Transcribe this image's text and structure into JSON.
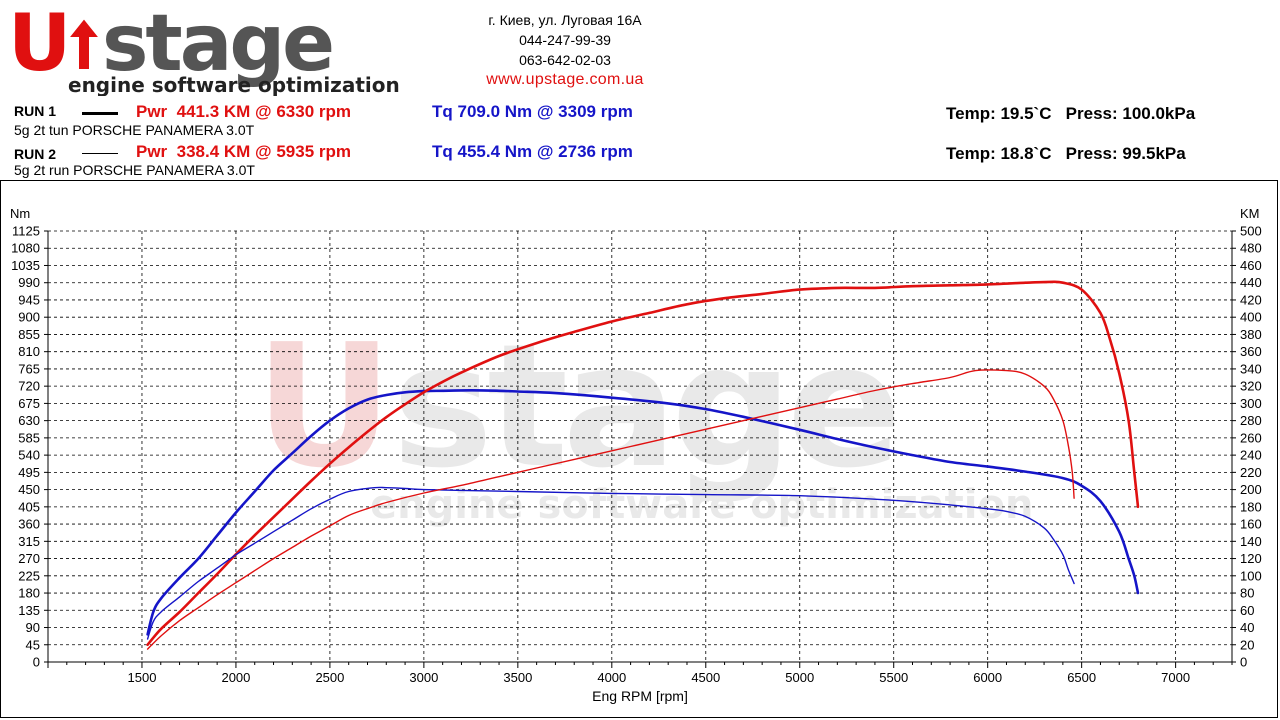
{
  "header": {
    "logo_text": "Upstage",
    "logo_tagline": "engine software optimization",
    "address": "г. Киев, ул. Луговая 16А",
    "phone1": "044-247-99-39",
    "phone2": "063-642-02-03",
    "website": "www.upstage.com.ua"
  },
  "runs": [
    {
      "label": "RUN 1",
      "description": "5g 2t tun PORSCHE PANAMERA 3.0T",
      "power": "Pwr  441.3 KM @ 6330 rpm",
      "torque": "Tq 709.0 Nm @ 3309 rpm",
      "temp": "Temp: 19.5`C",
      "press": "Press: 100.0kPa"
    },
    {
      "label": "RUN 2",
      "description": "5g 2t run PORSCHE PANAMERA 3.0T",
      "power": "Pwr  338.4 KM @ 5935 rpm",
      "torque": "Tq 455.4 Nm @ 2736 rpm",
      "temp": "Temp: 18.8`C",
      "press": "Press: 99.5kPa"
    }
  ],
  "colors": {
    "power": "#e01010",
    "torque": "#1515c8",
    "watermark": "#f2c8c8"
  },
  "chart_data": {
    "type": "line",
    "xlabel": "Eng RPM [rpm]",
    "ylabel_left": "Nm",
    "ylabel_right": "KM",
    "xlim": [
      1000,
      7300
    ],
    "ylim_left": [
      0,
      1125
    ],
    "ylim_right": [
      0,
      500
    ],
    "grid": true,
    "x_ticks": [
      1500,
      2000,
      2500,
      3000,
      3500,
      4000,
      4500,
      5000,
      5500,
      6000,
      6500,
      7000
    ],
    "y_left_ticks": [
      0,
      45,
      90,
      135,
      180,
      225,
      270,
      315,
      360,
      405,
      450,
      495,
      540,
      585,
      630,
      675,
      720,
      765,
      810,
      855,
      900,
      945,
      990,
      1035,
      1080,
      1125
    ],
    "y_right_ticks": [
      0,
      20,
      40,
      60,
      80,
      100,
      120,
      140,
      160,
      180,
      200,
      220,
      240,
      260,
      280,
      300,
      320,
      340,
      360,
      380,
      400,
      420,
      440,
      460,
      480,
      500
    ],
    "series": [
      {
        "run": 1,
        "quantity": "torque",
        "axis": "left",
        "color": "#1515c8",
        "width": 2.6,
        "x": [
          1530,
          1560,
          1600,
          1700,
          1800,
          1900,
          2000,
          2100,
          2200,
          2300,
          2400,
          2500,
          2600,
          2700,
          2800,
          2900,
          3000,
          3100,
          3200,
          3309,
          3400,
          3500,
          3700,
          4000,
          4300,
          4500,
          4700,
          5000,
          5200,
          5400,
          5600,
          5800,
          6000,
          6200,
          6400,
          6500,
          6600,
          6700,
          6750,
          6780,
          6800
        ],
        "y": [
          72,
          130,
          165,
          220,
          270,
          330,
          390,
          445,
          500,
          545,
          590,
          630,
          662,
          685,
          697,
          704,
          707,
          708,
          709,
          709,
          708,
          706,
          702,
          690,
          675,
          660,
          640,
          606,
          582,
          560,
          540,
          522,
          510,
          497,
          480,
          460,
          420,
          340,
          270,
          225,
          180
        ]
      },
      {
        "run": 1,
        "quantity": "power",
        "axis": "right",
        "color": "#e01010",
        "width": 2.6,
        "x": [
          1530,
          1600,
          1700,
          1800,
          1900,
          2000,
          2100,
          2200,
          2300,
          2400,
          2500,
          2600,
          2700,
          2800,
          2900,
          3000,
          3100,
          3200,
          3400,
          3600,
          3800,
          4000,
          4200,
          4400,
          4600,
          4800,
          5000,
          5200,
          5400,
          5600,
          5800,
          6000,
          6200,
          6330,
          6400,
          6500,
          6600,
          6650,
          6700,
          6750,
          6780,
          6800
        ],
        "y": [
          20,
          38,
          58,
          80,
          102,
          125,
          147,
          168,
          189,
          210,
          230,
          249,
          267,
          284,
          299,
          313,
          325,
          336,
          355,
          370,
          383,
          395,
          405,
          415,
          422,
          427,
          432,
          434,
          434,
          436,
          437,
          438,
          440,
          441,
          440,
          432,
          405,
          375,
          335,
          280,
          220,
          180
        ]
      },
      {
        "run": 2,
        "quantity": "torque",
        "axis": "left",
        "color": "#1515c8",
        "width": 1.4,
        "x": [
          1530,
          1560,
          1600,
          1700,
          1800,
          1900,
          2000,
          2100,
          2200,
          2300,
          2400,
          2500,
          2600,
          2736,
          2800,
          2900,
          3000,
          3200,
          3500,
          4000,
          4500,
          5000,
          5500,
          5800,
          6000,
          6100,
          6200,
          6300,
          6350,
          6400,
          6430,
          6460
        ],
        "y": [
          60,
          105,
          130,
          170,
          210,
          245,
          280,
          310,
          340,
          370,
          400,
          425,
          445,
          455,
          455,
          453,
          450,
          448,
          445,
          440,
          437,
          434,
          422,
          410,
          400,
          393,
          380,
          350,
          320,
          280,
          240,
          205
        ]
      },
      {
        "run": 2,
        "quantity": "power",
        "axis": "right",
        "color": "#e01010",
        "width": 1.4,
        "x": [
          1530,
          1600,
          1700,
          1800,
          1900,
          2000,
          2100,
          2200,
          2300,
          2400,
          2500,
          2600,
          2700,
          2800,
          3000,
          3200,
          3400,
          3600,
          3800,
          4000,
          4200,
          4400,
          4600,
          4800,
          5000,
          5200,
          5400,
          5600,
          5800,
          5935,
          6100,
          6200,
          6300,
          6350,
          6400,
          6430,
          6450,
          6460
        ],
        "y": [
          15,
          30,
          48,
          63,
          78,
          92,
          106,
          120,
          133,
          146,
          158,
          170,
          178,
          185,
          196,
          205,
          215,
          225,
          235,
          245,
          255,
          265,
          275,
          285,
          295,
          305,
          315,
          323,
          330,
          338,
          338,
          334,
          320,
          305,
          280,
          250,
          220,
          190
        ]
      }
    ]
  }
}
